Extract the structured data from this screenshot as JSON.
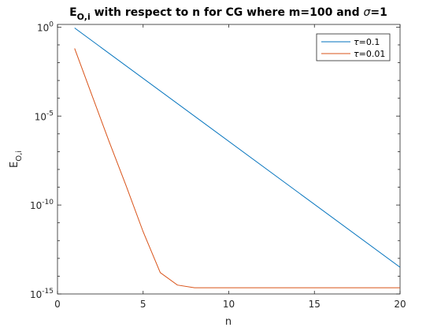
{
  "chart_data": {
    "type": "line",
    "title": {
      "main": "E",
      "sub": "O,i",
      "rest": " with respect to n for CG where m=100 and ",
      "sigma_symbol": "σ",
      "end": "=1"
    },
    "xlabel": "n",
    "ylabel": {
      "main": "E",
      "sub": "O,i"
    },
    "xlim": [
      0,
      20
    ],
    "ylim_log10": [
      -15,
      0.15
    ],
    "yscale": "log",
    "grid": false,
    "legend_position": "top-right",
    "x_ticks": [
      0,
      5,
      10,
      15,
      20
    ],
    "x_tick_labels": [
      "0",
      "5",
      "10",
      "15",
      "20"
    ],
    "y_ticks_exponent": [
      0,
      -5,
      -10,
      -15
    ],
    "y_tick_labels": [
      {
        "base": "10",
        "exp": "0"
      },
      {
        "base": "10",
        "exp": "-5"
      },
      {
        "base": "10",
        "exp": "-10"
      },
      {
        "base": "10",
        "exp": "-15"
      }
    ],
    "series": [
      {
        "name": "τ=0.1",
        "symbol": "τ",
        "suffix": "=0.1",
        "color": "#0072BD",
        "x": [
          1,
          20
        ],
        "y_log10": [
          -0.05,
          -13.5
        ]
      },
      {
        "name": "τ=0.01",
        "symbol": "τ",
        "suffix": "=0.01",
        "color": "#D95319",
        "x": [
          1,
          2,
          3,
          4,
          5,
          6,
          7,
          8,
          9,
          10,
          11,
          12,
          13,
          14,
          15,
          16,
          17,
          18,
          19,
          20
        ],
        "y_log10": [
          -1.2,
          -3.8,
          -6.4,
          -8.9,
          -11.5,
          -13.8,
          -14.5,
          -14.65,
          -14.65,
          -14.65,
          -14.65,
          -14.65,
          -14.65,
          -14.65,
          -14.65,
          -14.65,
          -14.65,
          -14.65,
          -14.65,
          -14.65
        ]
      }
    ]
  }
}
